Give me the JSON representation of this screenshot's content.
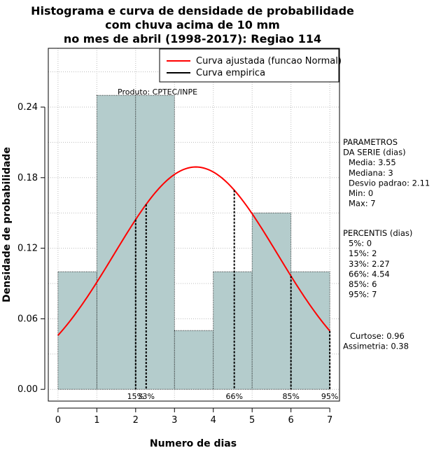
{
  "chart_data": {
    "type": "bar",
    "title_lines": [
      "Histograma e curva de densidade de probabilidade",
      "com chuva acima de 10 mm",
      "no mes de abril (1998-2017): Regiao 114"
    ],
    "xlabel": "Numero de dias",
    "ylabel": "Densidade de probabilidade",
    "xlim": [
      -0.25,
      7.25
    ],
    "ylim": [
      -0.01,
      0.29
    ],
    "x_ticks": [
      "0",
      "1",
      "2",
      "3",
      "4",
      "5",
      "6",
      "7"
    ],
    "y_ticks": [
      "0.00",
      "0.06",
      "0.12",
      "0.18",
      "0.24"
    ],
    "grid": true,
    "legend_position": "top-right",
    "bins": [
      {
        "x0": 0,
        "x1": 1,
        "value": 0.1
      },
      {
        "x0": 1,
        "x1": 2,
        "value": 0.25
      },
      {
        "x0": 2,
        "x1": 3,
        "value": 0.25
      },
      {
        "x0": 3,
        "x1": 4,
        "value": 0.05
      },
      {
        "x0": 4,
        "x1": 5,
        "value": 0.1
      },
      {
        "x0": 5,
        "x1": 6,
        "value": 0.15
      },
      {
        "x0": 6,
        "x1": 7,
        "value": 0.1
      }
    ],
    "series": [
      {
        "name": "Curva ajustada (funcao Normal)",
        "color": "#ff0000",
        "distribution": "normal",
        "mean": 3.55,
        "sd": 2.11,
        "x_range": [
          0,
          7
        ]
      },
      {
        "name": "Curva empirica",
        "color": "#000000"
      }
    ],
    "percentile_markers": [
      {
        "x": 2,
        "label": "15%"
      },
      {
        "x": 2.27,
        "label": "33%"
      },
      {
        "x": 4.54,
        "label": "66%"
      },
      {
        "x": 6,
        "label": "85%"
      },
      {
        "x": 7,
        "label": "95%"
      }
    ],
    "product_label": "Produto: CPTEC/INPE",
    "bar_color": "#b4cccc"
  },
  "stats_panel": {
    "parametros_lines": [
      "PARAMETROS",
      "DA SERIE (dias)",
      "Media: 3.55",
      "Mediana: 3",
      "Desvio padrao: 2.11",
      "Min: 0",
      "Max: 7"
    ],
    "percentis_lines": [
      "PERCENTIS (dias)",
      "5%: 0",
      "15%: 2",
      "33%: 2.27",
      "66%: 4.54",
      "85%: 6",
      "95%: 7"
    ],
    "shape_lines": [
      "Curtose: 0.96",
      "Assimetria: 0.38"
    ]
  }
}
